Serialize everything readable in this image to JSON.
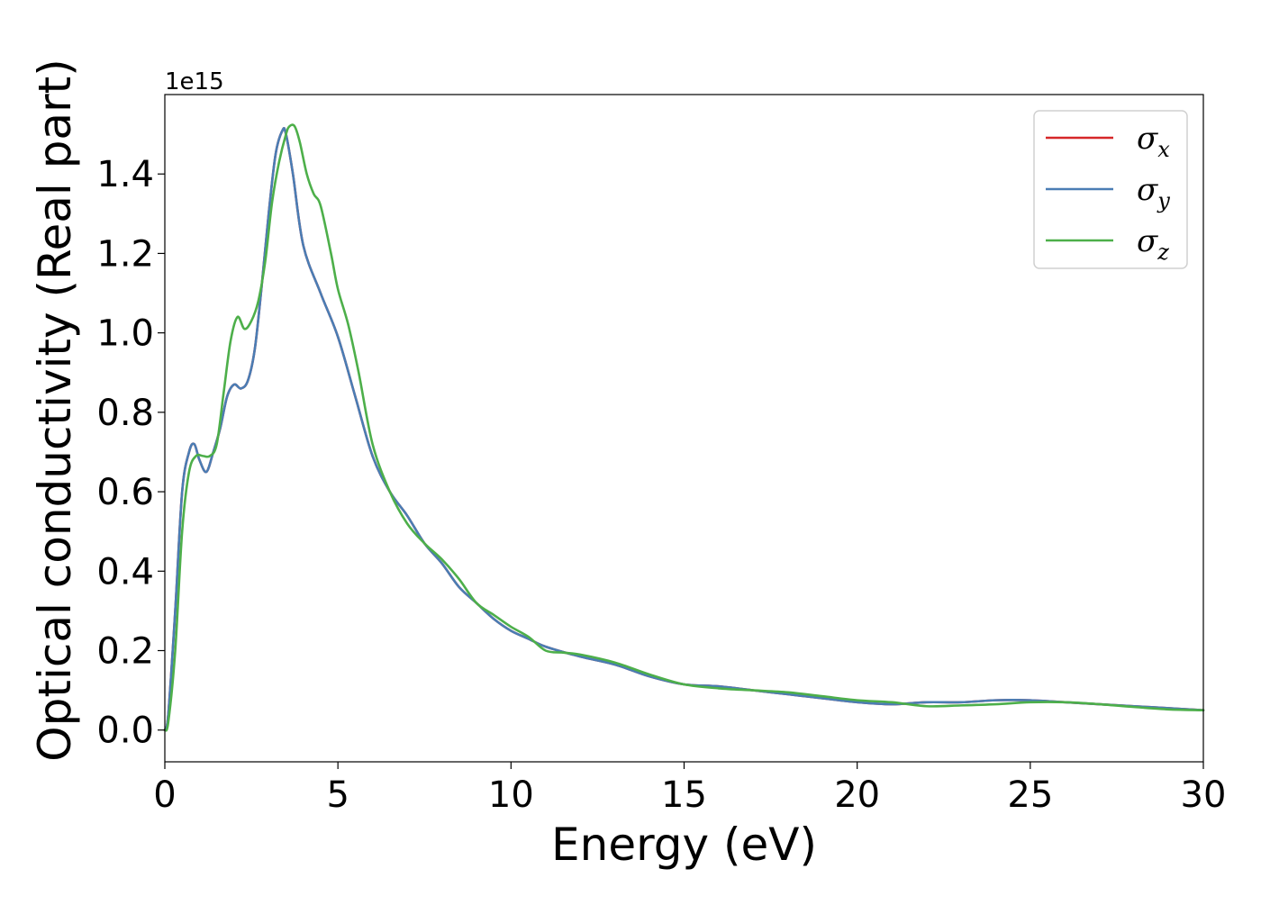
{
  "chart_data": {
    "type": "line",
    "xlabel": "Energy (eV)",
    "ylabel": "Optical conductivity (Real part)",
    "y_offset_label": "1e15",
    "y_scale": 1000000000000000.0,
    "xlim": [
      0,
      30
    ],
    "ylim": [
      -0.08,
      1.6
    ],
    "xticks": [
      0,
      5,
      10,
      15,
      20,
      25,
      30
    ],
    "xtick_labels": [
      "0",
      "5",
      "10",
      "15",
      "20",
      "25",
      "30"
    ],
    "yticks": [
      0.0,
      0.2,
      0.4,
      0.6,
      0.8,
      1.0,
      1.2,
      1.4
    ],
    "ytick_labels": [
      "0.0",
      "0.2",
      "0.4",
      "0.6",
      "0.8",
      "1.0",
      "1.2",
      "1.4"
    ],
    "grid": false,
    "legend_position": "top-right",
    "series": [
      {
        "name": "σx",
        "symbol": "σ",
        "subscript": "x",
        "color": "#d62728",
        "x": [
          0,
          0.1,
          0.3,
          0.5,
          0.7,
          0.85,
          1.0,
          1.2,
          1.4,
          1.6,
          1.8,
          2.0,
          2.2,
          2.4,
          2.6,
          2.8,
          3.0,
          3.2,
          3.4,
          3.5,
          3.7,
          4.0,
          4.5,
          5.0,
          5.5,
          6.0,
          6.5,
          7.0,
          7.5,
          8.0,
          8.5,
          9.0,
          9.5,
          10.0,
          10.5,
          11.0,
          12.0,
          13.0,
          14.0,
          15.0,
          16.0,
          17.0,
          18.0,
          19.0,
          20.0,
          21.0,
          22.0,
          23.0,
          24.0,
          25.0,
          26.0,
          27.0,
          28.0,
          29.0,
          30.0
        ],
        "y": [
          0.0,
          0.04,
          0.3,
          0.6,
          0.7,
          0.72,
          0.68,
          0.65,
          0.7,
          0.76,
          0.84,
          0.87,
          0.86,
          0.88,
          0.96,
          1.12,
          1.3,
          1.45,
          1.51,
          1.5,
          1.4,
          1.22,
          1.1,
          0.99,
          0.84,
          0.69,
          0.6,
          0.54,
          0.47,
          0.42,
          0.36,
          0.32,
          0.28,
          0.25,
          0.23,
          0.21,
          0.185,
          0.165,
          0.135,
          0.115,
          0.11,
          0.1,
          0.09,
          0.08,
          0.07,
          0.065,
          0.07,
          0.07,
          0.075,
          0.075,
          0.07,
          0.065,
          0.06,
          0.055,
          0.05
        ]
      },
      {
        "name": "σy",
        "symbol": "σ",
        "subscript": "y",
        "color": "#4a7db4",
        "x": [
          0,
          0.1,
          0.3,
          0.5,
          0.7,
          0.85,
          1.0,
          1.2,
          1.4,
          1.6,
          1.8,
          2.0,
          2.2,
          2.4,
          2.6,
          2.8,
          3.0,
          3.2,
          3.4,
          3.5,
          3.7,
          4.0,
          4.5,
          5.0,
          5.5,
          6.0,
          6.5,
          7.0,
          7.5,
          8.0,
          8.5,
          9.0,
          9.5,
          10.0,
          10.5,
          11.0,
          12.0,
          13.0,
          14.0,
          15.0,
          16.0,
          17.0,
          18.0,
          19.0,
          20.0,
          21.0,
          22.0,
          23.0,
          24.0,
          25.0,
          26.0,
          27.0,
          28.0,
          29.0,
          30.0
        ],
        "y": [
          0.0,
          0.04,
          0.3,
          0.6,
          0.7,
          0.72,
          0.68,
          0.65,
          0.7,
          0.76,
          0.84,
          0.87,
          0.86,
          0.88,
          0.96,
          1.12,
          1.3,
          1.45,
          1.51,
          1.5,
          1.4,
          1.22,
          1.1,
          0.99,
          0.84,
          0.69,
          0.6,
          0.54,
          0.47,
          0.42,
          0.36,
          0.32,
          0.28,
          0.25,
          0.23,
          0.21,
          0.185,
          0.165,
          0.135,
          0.115,
          0.11,
          0.1,
          0.09,
          0.08,
          0.07,
          0.065,
          0.07,
          0.07,
          0.075,
          0.075,
          0.07,
          0.065,
          0.06,
          0.055,
          0.05
        ]
      },
      {
        "name": "σz",
        "symbol": "σ",
        "subscript": "z",
        "color": "#4daf4a",
        "x": [
          0,
          0.1,
          0.3,
          0.5,
          0.7,
          0.9,
          1.1,
          1.3,
          1.5,
          1.7,
          1.9,
          2.1,
          2.3,
          2.5,
          2.7,
          2.9,
          3.1,
          3.3,
          3.5,
          3.6,
          3.75,
          3.9,
          4.1,
          4.3,
          4.5,
          4.8,
          5.0,
          5.3,
          5.6,
          6.0,
          6.5,
          7.0,
          7.5,
          8.0,
          8.5,
          9.0,
          9.5,
          10.0,
          10.5,
          11.0,
          11.5,
          12.0,
          13.0,
          14.0,
          15.0,
          16.0,
          17.0,
          18.0,
          19.0,
          20.0,
          21.0,
          22.0,
          23.0,
          24.0,
          25.0,
          26.0,
          27.0,
          28.0,
          29.0,
          30.0
        ],
        "y": [
          0.0,
          0.02,
          0.2,
          0.5,
          0.65,
          0.69,
          0.69,
          0.69,
          0.72,
          0.85,
          0.98,
          1.04,
          1.01,
          1.03,
          1.08,
          1.18,
          1.33,
          1.43,
          1.5,
          1.52,
          1.52,
          1.48,
          1.4,
          1.35,
          1.32,
          1.2,
          1.11,
          1.02,
          0.9,
          0.72,
          0.6,
          0.52,
          0.47,
          0.43,
          0.38,
          0.32,
          0.29,
          0.26,
          0.235,
          0.2,
          0.195,
          0.19,
          0.17,
          0.14,
          0.115,
          0.105,
          0.1,
          0.095,
          0.085,
          0.075,
          0.07,
          0.06,
          0.062,
          0.065,
          0.07,
          0.07,
          0.065,
          0.058,
          0.052,
          0.05
        ]
      }
    ]
  }
}
